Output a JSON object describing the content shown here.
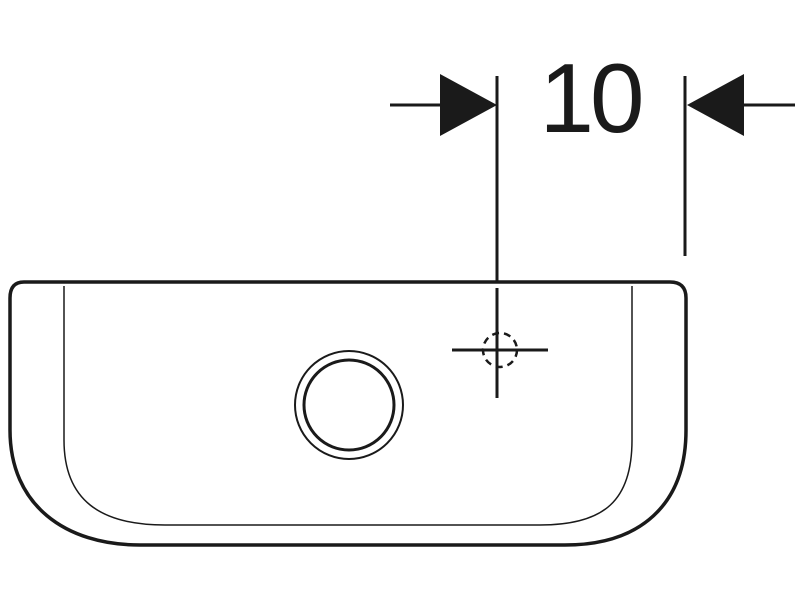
{
  "dimension": {
    "value": "10"
  },
  "colors": {
    "line": "#1a1a1a",
    "background": "#ffffff"
  },
  "icons": {
    "arrow_left": "arrowhead-right-pointing",
    "arrow_right": "arrowhead-left-pointing",
    "tap_hole": "crosshair-dashed-circle",
    "overflow": "circle-ring"
  }
}
